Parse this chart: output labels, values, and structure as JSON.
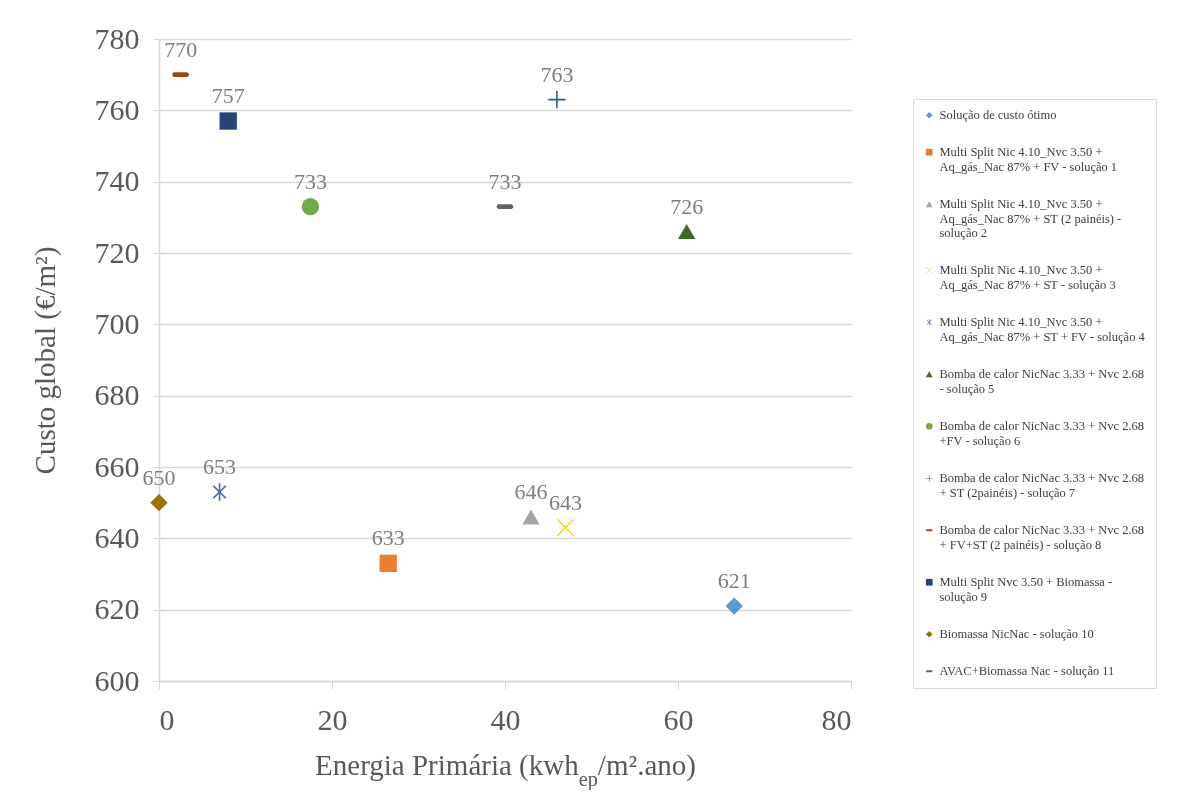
{
  "chart_data": {
    "type": "scatter",
    "xlabel": "Energia Primária (kwh$_{ep}$/m².ano)",
    "ylabel": "Custo global (€/m²)",
    "xlim": [
      0,
      80
    ],
    "xticks": [
      0,
      20,
      40,
      60,
      80
    ],
    "ylim": [
      600,
      780
    ],
    "yticks": [
      600,
      620,
      640,
      660,
      680,
      700,
      720,
      740,
      760,
      780
    ],
    "grid": "y",
    "legend": "right",
    "data_labels": true,
    "series": [
      {
        "name": "Solução de custo ótimo",
        "color": "#5b9bd5",
        "marker": "diamond",
        "x": [
          66.5
        ],
        "values": [
          621
        ]
      },
      {
        "name": "Multi Split Nic 4.10_Nvc 3.50 + Aq_gás_Nac 87% + FV - solução 1",
        "color": "#ed7d31",
        "marker": "square",
        "x": [
          26.5
        ],
        "values": [
          633
        ]
      },
      {
        "name": "Multi Split Nic 4.10_Nvc 3.50 + Aq_gás_Nac 87% + ST (2 painéis) - solução 2",
        "color": "#a5a5a5",
        "marker": "triangle",
        "x": [
          43
        ],
        "values": [
          646
        ]
      },
      {
        "name": "Multi Split Nic 4.10_Nvc 3.50 + Aq_gás_Nac 87% + ST - solução 3",
        "color": "#ffc000",
        "marker": "x",
        "x": [
          47
        ],
        "values": [
          643
        ]
      },
      {
        "name": "Multi Split Nic 4.10_Nvc 3.50 + Aq_gás_Nac 87% + ST + FV - solução 4",
        "color": "#4472c4",
        "marker": "star",
        "x": [
          7
        ],
        "values": [
          653
        ]
      },
      {
        "name": "Bomba de calor NicNac 3.33 + Nvc 2.68 - solução 5",
        "color": "#43682b",
        "marker": "triangle",
        "x": [
          61
        ],
        "values": [
          726
        ]
      },
      {
        "name": "Bomba de calor NicNac 3.33 + Nvc 2.68 +FV - solução 6",
        "color": "#70ad47",
        "marker": "circle",
        "x": [
          17.5
        ],
        "values": [
          733
        ]
      },
      {
        "name": "Bomba de calor NicNac 3.33 + Nvc 2.68 + ST (2painéis) - solução 7",
        "color": "#255e91",
        "marker": "cross",
        "x": [
          46
        ],
        "values": [
          763
        ]
      },
      {
        "name": "Bomba de calor NicNac 3.33 + Nvc 2.68 + FV+ST (2 painéis) - solução 8",
        "color": "#9e480e",
        "x": [
          2.5
        ],
        "values": [
          770
        ]
      },
      {
        "name": "Multi Split Nvc 3.50 + Biomassa - solução 9",
        "color": "#264478",
        "marker": "square",
        "x": [
          8
        ],
        "values": [
          757
        ]
      },
      {
        "name": "Biomassa NicNac - solução 10",
        "color": "#997300",
        "marker": "diamond",
        "x": [
          0
        ],
        "values": [
          650
        ]
      },
      {
        "name": "AVAC+Biomassa Nac - solução 11",
        "color": "#636363",
        "x": [
          40
        ],
        "values": [
          733
        ]
      }
    ]
  }
}
